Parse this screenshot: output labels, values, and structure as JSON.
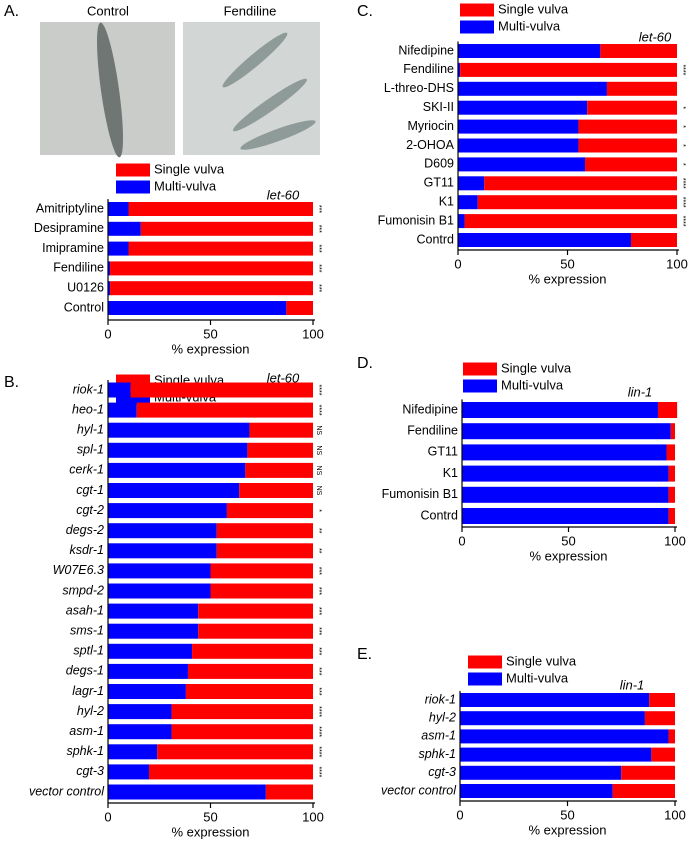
{
  "chart_data": [
    {
      "type": "bar",
      "orientation": "horizontal",
      "stacked": true,
      "panel_label": "A.",
      "photo_labels": [
        "Control",
        "Fendiline"
      ],
      "annotation": "let-60",
      "xlabel": "% expression",
      "italic_categories": false,
      "categories": [
        "Amitriptyline",
        "Desipramine",
        "Imipramine",
        "Fendiline",
        "U0126",
        "Control"
      ],
      "series": [
        {
          "name": "Multi-vulva",
          "color": "#0000ff",
          "values": [
            10,
            16,
            10,
            1,
            1,
            87
          ]
        },
        {
          "name": "Single vulva",
          "color": "#ff0000",
          "values": [
            90,
            84,
            90,
            99,
            99,
            13
          ]
        }
      ],
      "significance": [
        "***",
        "***",
        "***",
        "***",
        "***",
        null
      ],
      "xlim": [
        0,
        100
      ],
      "xticks": [
        0,
        50,
        100
      ]
    },
    {
      "type": "bar",
      "orientation": "horizontal",
      "stacked": true,
      "panel_label": "B.",
      "annotation": "let-60",
      "xlabel": "% expression",
      "italic_categories": true,
      "categories": [
        "riok-1",
        "heo-1",
        "hyl-1",
        "spl-1",
        "cerk-1",
        "cgt-1",
        "cgt-2",
        "degs-2",
        "ksdr-1",
        "W07E6.3",
        "smpd-2",
        "asah-1",
        "sms-1",
        "sptl-1",
        "degs-1",
        "lagr-1",
        "hyl-2",
        "asm-1",
        "sphk-1",
        "cgt-3",
        "vector control"
      ],
      "series": [
        {
          "name": "Multi-vulva",
          "color": "#0000ff",
          "values": [
            11,
            14,
            69,
            68,
            67,
            64,
            58,
            53,
            53,
            50,
            50,
            44,
            44,
            41,
            39,
            38,
            31,
            31,
            24,
            20,
            77
          ]
        },
        {
          "name": "Single vulva",
          "color": "#ff0000",
          "values": [
            89,
            86,
            31,
            32,
            33,
            36,
            42,
            47,
            47,
            50,
            50,
            56,
            56,
            59,
            61,
            62,
            69,
            69,
            76,
            80,
            23
          ]
        }
      ],
      "significance": [
        "****",
        "****",
        "NS",
        "NS",
        "NS",
        "NS",
        "*",
        "**",
        "**",
        "***",
        "***",
        "***",
        "***",
        "***",
        "***",
        "***",
        "****",
        "****",
        "****",
        "****",
        null
      ],
      "xlim": [
        0,
        100
      ],
      "xticks": [
        0,
        50,
        100
      ]
    },
    {
      "type": "bar",
      "orientation": "horizontal",
      "stacked": true,
      "panel_label": "C.",
      "annotation": "let-60",
      "xlabel": "% expression",
      "italic_categories": false,
      "categories": [
        "Nifedipine",
        "Fendiline",
        "L-threo-DHS",
        "SKI-II",
        "Myriocin",
        "2-OHOA",
        "D609",
        "GT11",
        "K1",
        "Fumonisin B1",
        "Contrd"
      ],
      "series": [
        {
          "name": "Multi-vulva",
          "color": "#0000ff",
          "values": [
            65,
            1,
            68,
            59,
            55,
            55,
            58,
            12,
            9,
            3,
            79
          ]
        },
        {
          "name": "Single vulva",
          "color": "#ff0000",
          "values": [
            35,
            99,
            32,
            41,
            45,
            45,
            42,
            88,
            91,
            97,
            21
          ]
        }
      ],
      "significance": [
        null,
        "****",
        null,
        "*",
        "*",
        "*",
        "*",
        "****",
        "****",
        "****",
        null
      ],
      "xlim": [
        0,
        100
      ],
      "xticks": [
        0,
        50,
        100
      ]
    },
    {
      "type": "bar",
      "orientation": "horizontal",
      "stacked": true,
      "panel_label": "D.",
      "annotation": "lin-1",
      "xlabel": "% expression",
      "italic_categories": false,
      "categories": [
        "Nifedipine",
        "Fendiline",
        "GT11",
        "K1",
        "Fumonisin B1",
        "Contrd"
      ],
      "series": [
        {
          "name": "Multi-vulva",
          "color": "#0000ff",
          "values": [
            92,
            98,
            96,
            97,
            97,
            97
          ]
        },
        {
          "name": "Single vulva",
          "color": "#ff0000",
          "values": [
            9,
            2,
            4,
            3,
            3,
            3
          ]
        }
      ],
      "xlim": [
        0,
        100
      ],
      "xticks": [
        0,
        50,
        100
      ]
    },
    {
      "type": "bar",
      "orientation": "horizontal",
      "stacked": true,
      "panel_label": "E.",
      "annotation": "lin-1",
      "xlabel": "% expression",
      "italic_categories": true,
      "categories": [
        "riok-1",
        "hyl-2",
        "asm-1",
        "sphk-1",
        "cgt-3",
        "vector control"
      ],
      "series": [
        {
          "name": "Multi-vulva",
          "color": "#0000ff",
          "values": [
            88,
            86,
            97,
            89,
            75,
            71
          ]
        },
        {
          "name": "Single vulva",
          "color": "#ff0000",
          "values": [
            12,
            14,
            3,
            11,
            25,
            29
          ]
        }
      ],
      "xlim": [
        0,
        100
      ],
      "xticks": [
        0,
        50,
        100
      ]
    }
  ]
}
